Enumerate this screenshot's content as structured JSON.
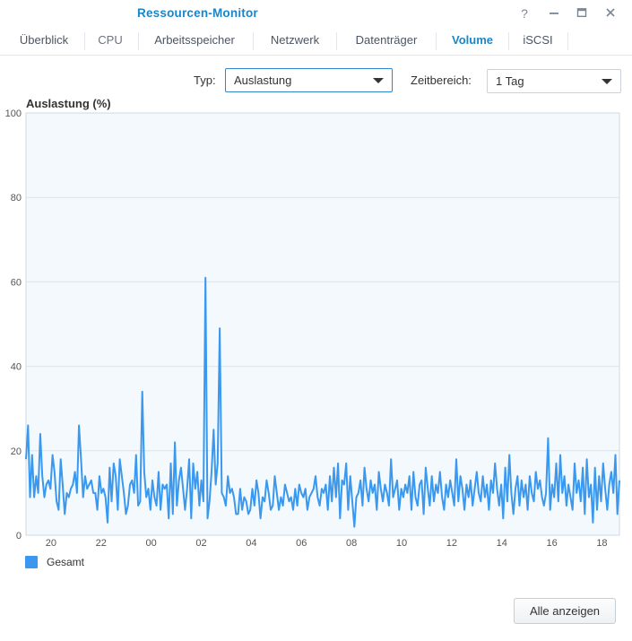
{
  "window": {
    "title": "Ressourcen-Monitor",
    "buttons": {
      "help": "?",
      "minimize": "minimize",
      "maximize": "maximize",
      "close": "close"
    }
  },
  "tabs": [
    {
      "label": "Überblick",
      "active": false
    },
    {
      "label": "CPU",
      "active": false
    },
    {
      "label": "Arbeitsspeicher",
      "active": false
    },
    {
      "label": "Netzwerk",
      "active": false
    },
    {
      "label": "Datenträger",
      "active": false
    },
    {
      "label": "Volume",
      "active": true
    },
    {
      "label": "iSCSI",
      "active": false
    }
  ],
  "filters": {
    "type_label": "Typ:",
    "type_value": "Auslastung",
    "range_label": "Zeitbereich:",
    "range_value": "1 Tag"
  },
  "footer": {
    "show_all_button": "Alle anzeigen"
  },
  "colors": {
    "accent": "#1a86c8",
    "series": "#3a98ee",
    "plot_background": "#f3f9fd",
    "grid": "#dde3ea"
  },
  "chart_data": {
    "type": "line",
    "title": "Auslastung (%)",
    "ylim": [
      0,
      100
    ],
    "yticks": [
      "0",
      "20",
      "40",
      "60",
      "80",
      "100"
    ],
    "xlim": [
      19.0,
      18.7
    ],
    "xticks": [
      "20",
      "22",
      "00",
      "02",
      "04",
      "06",
      "08",
      "10",
      "12",
      "14",
      "16",
      "18"
    ],
    "grid": true,
    "legend_position": "bottom-left",
    "series": [
      {
        "name": "Gesamt",
        "values": [
          18,
          26,
          9,
          19,
          9,
          14,
          10,
          24,
          14,
          9,
          12,
          13,
          11,
          19,
          15,
          8,
          6,
          18,
          12,
          5,
          10,
          9,
          11,
          12,
          15,
          10,
          26,
          18,
          9,
          14,
          11,
          12,
          13,
          10,
          10,
          6,
          14,
          10,
          11,
          9,
          3,
          16,
          8,
          17,
          14,
          6,
          18,
          14,
          10,
          5,
          7,
          12,
          13,
          10,
          19,
          7,
          8,
          34,
          15,
          9,
          11,
          6,
          13,
          9,
          7,
          15,
          6,
          12,
          11,
          12,
          4,
          17,
          5,
          22,
          7,
          13,
          16,
          11,
          6,
          11,
          18,
          4,
          17,
          11,
          15,
          7,
          13,
          8,
          61,
          4,
          8,
          15,
          25,
          12,
          17,
          49,
          10,
          9,
          7,
          14,
          10,
          11,
          9,
          5,
          5,
          11,
          6,
          9,
          8,
          5,
          6,
          11,
          7,
          13,
          10,
          4,
          9,
          8,
          13,
          10,
          6,
          7,
          14,
          10,
          6,
          9,
          7,
          12,
          10,
          8,
          9,
          6,
          11,
          7,
          12,
          10,
          9,
          11,
          6,
          9,
          10,
          11,
          14,
          9,
          7,
          11,
          10,
          12,
          6,
          14,
          8,
          16,
          9,
          17,
          4,
          13,
          12,
          17,
          6,
          14,
          8,
          2,
          9,
          10,
          13,
          7,
          16,
          11,
          8,
          13,
          10,
          12,
          6,
          15,
          11,
          8,
          12,
          10,
          7,
          18,
          9,
          11,
          13,
          6,
          11,
          9,
          12,
          10,
          14,
          6,
          15,
          9,
          7,
          12,
          13,
          5,
          16,
          11,
          7,
          14,
          8,
          12,
          10,
          15,
          9,
          6,
          12,
          9,
          13,
          10,
          7,
          18,
          8,
          14,
          11,
          6,
          12,
          9,
          13,
          7,
          11,
          15,
          10,
          8,
          14,
          9,
          12,
          6,
          13,
          10,
          17,
          11,
          7,
          12,
          4,
          16,
          8,
          19,
          10,
          5,
          11,
          14,
          7,
          13,
          9,
          12,
          6,
          14,
          10,
          8,
          15,
          11,
          13,
          9,
          7,
          10,
          23,
          6,
          12,
          9,
          17,
          8,
          19,
          10,
          14,
          7,
          12,
          9,
          6,
          17,
          10,
          13,
          8,
          16,
          5,
          18,
          9,
          12,
          3,
          16,
          6,
          14,
          8,
          17,
          11,
          6,
          12,
          15,
          10,
          19,
          5,
          13
        ]
      }
    ]
  }
}
